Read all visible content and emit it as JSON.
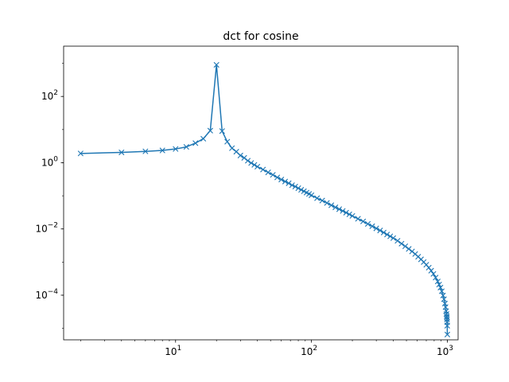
{
  "chart_data": {
    "type": "line",
    "title": "dct for cosine",
    "xlabel": "",
    "ylabel": "",
    "xscale": "log",
    "yscale": "log",
    "xlim": [
      1.5,
      1200
    ],
    "ylim": [
      4.5e-06,
      3300
    ],
    "grid": false,
    "legend": "none",
    "marker": "x",
    "color": "#1f77b4",
    "x_ticks": [
      {
        "value": 10,
        "base": "10",
        "exp": "1"
      },
      {
        "value": 100,
        "base": "10",
        "exp": "2"
      },
      {
        "value": 1000,
        "base": "10",
        "exp": "3"
      }
    ],
    "y_ticks": [
      {
        "value": 0.0001,
        "base": "10",
        "exp": "−4"
      },
      {
        "value": 0.01,
        "base": "10",
        "exp": "−2"
      },
      {
        "value": 1,
        "base": "10",
        "exp": "0"
      },
      {
        "value": 100,
        "base": "10",
        "exp": "2"
      }
    ],
    "series": [
      {
        "x": [
          2,
          4,
          6,
          8,
          10,
          12,
          14,
          16,
          18,
          20,
          22,
          24,
          26,
          28,
          30,
          32,
          34,
          36,
          38,
          40,
          44,
          48,
          52,
          56,
          60,
          64,
          68,
          72,
          76,
          80,
          84,
          88,
          92,
          96,
          100,
          110,
          120,
          130,
          140,
          150,
          160,
          170,
          180,
          190,
          200,
          220,
          240,
          260,
          280,
          300,
          320,
          340,
          360,
          380,
          400,
          430,
          460,
          490,
          520,
          550,
          580,
          610,
          640,
          670,
          700,
          730,
          760,
          790,
          820,
          850,
          870,
          890,
          910,
          930,
          945,
          960,
          970,
          980,
          986,
          990,
          992,
          994,
          996,
          998,
          1000
        ],
        "y": [
          1.9,
          2.05,
          2.2,
          2.35,
          2.6,
          3.0,
          3.9,
          5.3,
          9.3,
          900,
          9.0,
          4.3,
          2.75,
          2.15,
          1.65,
          1.4,
          1.15,
          0.98,
          0.86,
          0.76,
          0.62,
          0.51,
          0.43,
          0.36,
          0.31,
          0.27,
          0.24,
          0.21,
          0.19,
          0.17,
          0.152,
          0.138,
          0.125,
          0.114,
          0.104,
          0.085,
          0.072,
          0.061,
          0.052,
          0.045,
          0.0395,
          0.035,
          0.031,
          0.0277,
          0.0248,
          0.0203,
          0.0169,
          0.0142,
          0.0121,
          0.0104,
          0.009,
          0.0078,
          0.0068,
          0.006,
          0.0053,
          0.0044,
          0.0036,
          0.003,
          0.0025,
          0.0021,
          0.00175,
          0.00145,
          0.00121,
          0.001,
          0.00083,
          0.00068,
          0.00055,
          0.00044,
          0.00034,
          0.00026,
          0.00021,
          0.00017,
          0.000132,
          9.8e-05,
          7.6e-05,
          5.6e-05,
          4.4e-05,
          3.3e-05,
          2.7e-05,
          2.3e-05,
          2.1e-05,
          1.85e-05,
          1.55e-05,
          1.2e-05,
          6.5e-06
        ]
      }
    ]
  }
}
